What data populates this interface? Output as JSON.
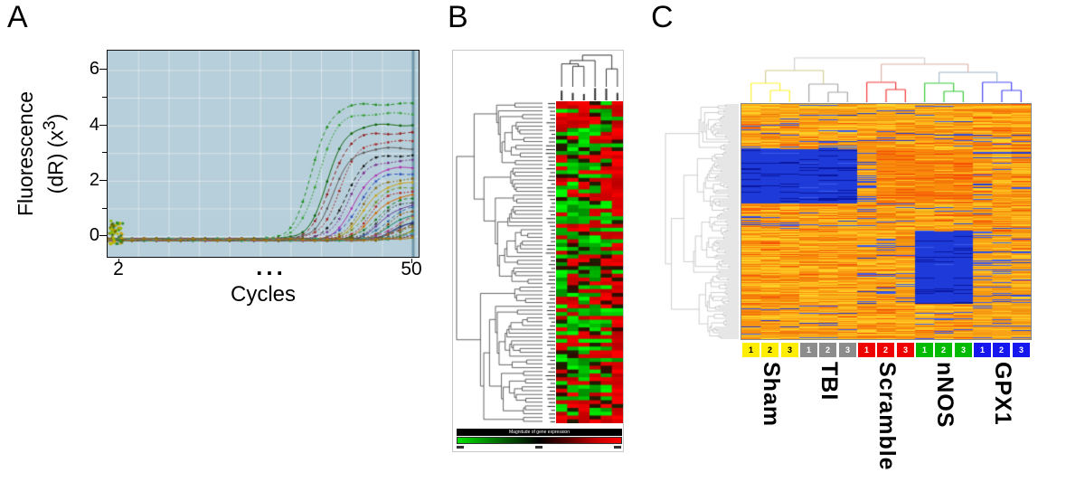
{
  "figure_labels": {
    "a": "A",
    "b": "B",
    "c": "C"
  },
  "chart_data": [
    {
      "type": "line",
      "panel": "A",
      "description": "Real-time qPCR amplification curves",
      "xlabel": "Cycles",
      "ylabel": "Fluorescence (dR) (x³)",
      "ylabel_lines": {
        "line1": "Fluorescence",
        "line2_pre": "(dR) (x",
        "sup": "3",
        "line2_post": ")"
      },
      "xticks": [
        "2",
        "...",
        "50"
      ],
      "yticks": [
        "6",
        "4",
        "2",
        "0"
      ],
      "xlim": [
        0,
        51
      ],
      "ylim": [
        -0.75,
        6.7
      ],
      "plot_bg": "#b7cfda",
      "series": [
        {
          "color": "#1e8f1e",
          "ct": 33.5,
          "p": 4.9
        },
        {
          "color": "#36a336",
          "ct": 34.5,
          "p": 4.55
        },
        {
          "color": "#0c640c",
          "ct": 36,
          "p": 4.15
        },
        {
          "color": "#8f1d1d",
          "ct": 36.5,
          "p": 3.85
        },
        {
          "color": "#a62929",
          "ct": 38,
          "p": 3.55
        },
        {
          "color": "#5c5c5c",
          "ct": 37,
          "p": 3.3
        },
        {
          "color": "#141414",
          "ct": 39,
          "p": 3.05
        },
        {
          "color": "#7c2d8f",
          "ct": 39.5,
          "p": 2.85
        },
        {
          "color": "#b030b0",
          "ct": 40.5,
          "p": 2.6
        },
        {
          "color": "#2b4bbd",
          "ct": 41,
          "p": 2.4
        },
        {
          "color": "#8a6a14",
          "ct": 41.5,
          "p": 2.2
        },
        {
          "color": "#c7a315",
          "ct": 42,
          "p": 2.05
        },
        {
          "color": "#6d8f23",
          "ct": 42.5,
          "p": 1.9
        },
        {
          "color": "#b22222",
          "ct": 43,
          "p": 1.78
        },
        {
          "color": "#cc6a00",
          "ct": 43.5,
          "p": 1.62
        },
        {
          "color": "#1f7a1f",
          "ct": 44,
          "p": 1.5
        },
        {
          "color": "#474747",
          "ct": 44.5,
          "p": 1.4
        },
        {
          "color": "#643c99",
          "ct": 45,
          "p": 1.3
        },
        {
          "color": "#2f6a99",
          "ct": 45.5,
          "p": 1.2
        },
        {
          "color": "#8a4a00",
          "ct": 46,
          "p": 1.1
        },
        {
          "color": "#117a55",
          "ct": 46.5,
          "p": 1.0
        },
        {
          "color": "#b03578",
          "ct": 47,
          "p": 0.95
        },
        {
          "color": "#9aa822",
          "ct": 47.5,
          "p": 0.9
        },
        {
          "color": "#225577",
          "ct": 48,
          "p": 0.82
        },
        {
          "color": "#7a2424",
          "ct": 48.2,
          "p": 0.78
        },
        {
          "color": "#567a22",
          "ct": 48.6,
          "p": 0.72
        },
        {
          "color": "#343477",
          "ct": 46.5,
          "p": 0.62
        },
        {
          "color": "#996633",
          "ct": 47.2,
          "p": 0.56
        },
        {
          "color": "#156215",
          "ct": 48.8,
          "p": 0.5
        },
        {
          "color": "#8a8a00",
          "ct": 49.2,
          "p": 0.44
        },
        {
          "color": "#cc4444",
          "ct": 49.5,
          "p": 0.4
        },
        {
          "color": "#4488cc",
          "ct": 49,
          "p": 0.34
        },
        {
          "color": "#884488",
          "ct": 49.6,
          "p": 0.3
        },
        {
          "color": "#22aaaa",
          "ct": 48.4,
          "p": 0.26
        },
        {
          "color": "#666600",
          "ct": 49.8,
          "p": 0.22
        },
        {
          "color": "#aa7711",
          "ct": 50,
          "p": 0.2
        }
      ],
      "noise_dots": {
        "count": 60,
        "colors": [
          "#b9b900",
          "#8fbe00",
          "#2f8f2f",
          "#6b6b00",
          "#c9a400",
          "#447744"
        ]
      }
    },
    {
      "type": "heatmap",
      "panel": "B",
      "description": "Hierarchically clustered gene expression heatmap (green-black-red), gene labels illegible at source resolution",
      "rows": 84,
      "cols": 6,
      "seed": 7,
      "col_red_bias": [
        0.15,
        0.18,
        0.22,
        0.3,
        0.45,
        0.85
      ],
      "colors": {
        "low": "#00e000",
        "mid": "#000000",
        "high": "#ff0000"
      },
      "legend_caption": "Magnitude of gene expression"
    },
    {
      "type": "heatmap",
      "panel": "C",
      "description": "Genome-wide expression heatmap with row and column dendrograms",
      "rows": 260,
      "cols": 15,
      "seed": 11,
      "palette": {
        "low": "#1e3ad8",
        "mid": "#f79a14",
        "high": "#f11505"
      },
      "groups": [
        {
          "name": "Sham",
          "color": "#ffee00",
          "text": "#000000",
          "samples": [
            "1",
            "2",
            "3"
          ]
        },
        {
          "name": "TBI",
          "color": "#8c8c8c",
          "text": "#ffffff",
          "samples": [
            "1",
            "2",
            "3"
          ]
        },
        {
          "name": "Scramble",
          "color": "#ee0000",
          "text": "#ffffff",
          "samples": [
            "1",
            "2",
            "3"
          ]
        },
        {
          "name": "nNOS",
          "color": "#00bb00",
          "text": "#ffffff",
          "samples": [
            "1",
            "2",
            "3"
          ]
        },
        {
          "name": "GPX1",
          "color": "#1616ee",
          "text": "#ffffff",
          "samples": [
            "1",
            "2",
            "3"
          ]
        }
      ],
      "blocks": [
        {
          "c0": 0,
          "c1": 6,
          "r0": 0.19,
          "r1": 0.42,
          "v": 0.05,
          "s": 0.8
        },
        {
          "c0": 6,
          "c1": 7,
          "r0": 0.19,
          "r1": 0.42,
          "v": 0.15,
          "s": 0.5
        },
        {
          "c0": 7,
          "c1": 12,
          "r0": 0.19,
          "r1": 0.42,
          "v": 0.9,
          "s": 0.55
        },
        {
          "c0": 9,
          "c1": 12,
          "r0": 0.54,
          "r1": 0.85,
          "v": 0.05,
          "s": 0.8
        },
        {
          "c0": 12,
          "c1": 14,
          "r0": 0.54,
          "r1": 0.85,
          "v": 0.2,
          "s": 0.45
        },
        {
          "c0": 0,
          "c1": 6,
          "r0": 0.54,
          "r1": 0.85,
          "v": 0.72,
          "s": 0.35
        },
        {
          "c0": 12,
          "c1": 15,
          "r0": 0.0,
          "r1": 0.12,
          "v": 0.85,
          "s": 0.45
        },
        {
          "c0": 0,
          "c1": 9,
          "r0": 0.0,
          "r1": 0.07,
          "v": 0.35,
          "s": 0.3
        },
        {
          "c0": 12,
          "c1": 15,
          "r0": 0.85,
          "r1": 1.0,
          "v": 0.3,
          "s": 0.35
        },
        {
          "c0": 6,
          "c1": 9,
          "r0": 0.88,
          "r1": 1.0,
          "v": 0.85,
          "s": 0.4
        }
      ]
    }
  ]
}
